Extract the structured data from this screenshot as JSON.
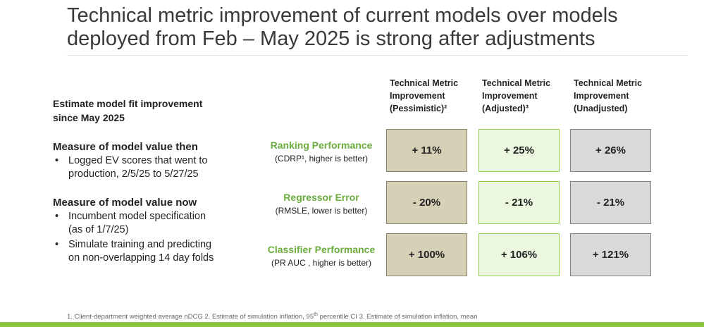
{
  "header": {
    "title_lines": [
      "Technical metric improvement of current models over models",
      "deployed from Feb – May 2025 is strong after adjustments"
    ]
  },
  "left": {
    "heading_lines": [
      "Estimate model fit improvement",
      "since May 2025"
    ],
    "sections": [
      {
        "title": "Measure of model value then",
        "bullets": [
          [
            "Logged EV scores that went to",
            "production, 2/5/25 to 5/27/25"
          ]
        ]
      },
      {
        "title": "Measure of model value now",
        "bullets": [
          [
            "Incumbent model specification",
            "(as of 1/7/25)"
          ],
          [
            "Simulate training and predicting",
            "on non-overlapping 14 day folds"
          ]
        ]
      }
    ]
  },
  "table": {
    "columns": [
      [
        "Technical Metric",
        "Improvement",
        "(Pessimistic)²"
      ],
      [
        "Technical Metric",
        "Improvement",
        "(Adjusted)³"
      ],
      [
        "Technical Metric",
        "Improvement",
        "(Unadjusted)"
      ]
    ],
    "rows": [
      {
        "label": "Ranking Performance",
        "note": "(CDRP¹, higher is better)",
        "cells": [
          "+ 11%",
          "+ 25%",
          "+ 26%"
        ]
      },
      {
        "label": "Regressor Error",
        "note": "(RMSLE, lower is better)",
        "cells": [
          "- 20%",
          "- 21%",
          "- 21%"
        ]
      },
      {
        "label": "Classifier Performance",
        "note": "(PR AUC , higher is better)",
        "cells": [
          "+ 100%",
          "+ 106%",
          "+ 121%"
        ]
      }
    ]
  },
  "footnote": [
    "1. Client-department weighted average nDCG 2. Estimate of simulation inflation, 95",
    "th",
    " percentile CI 3. Estimate of simulation inflation, mean"
  ]
}
